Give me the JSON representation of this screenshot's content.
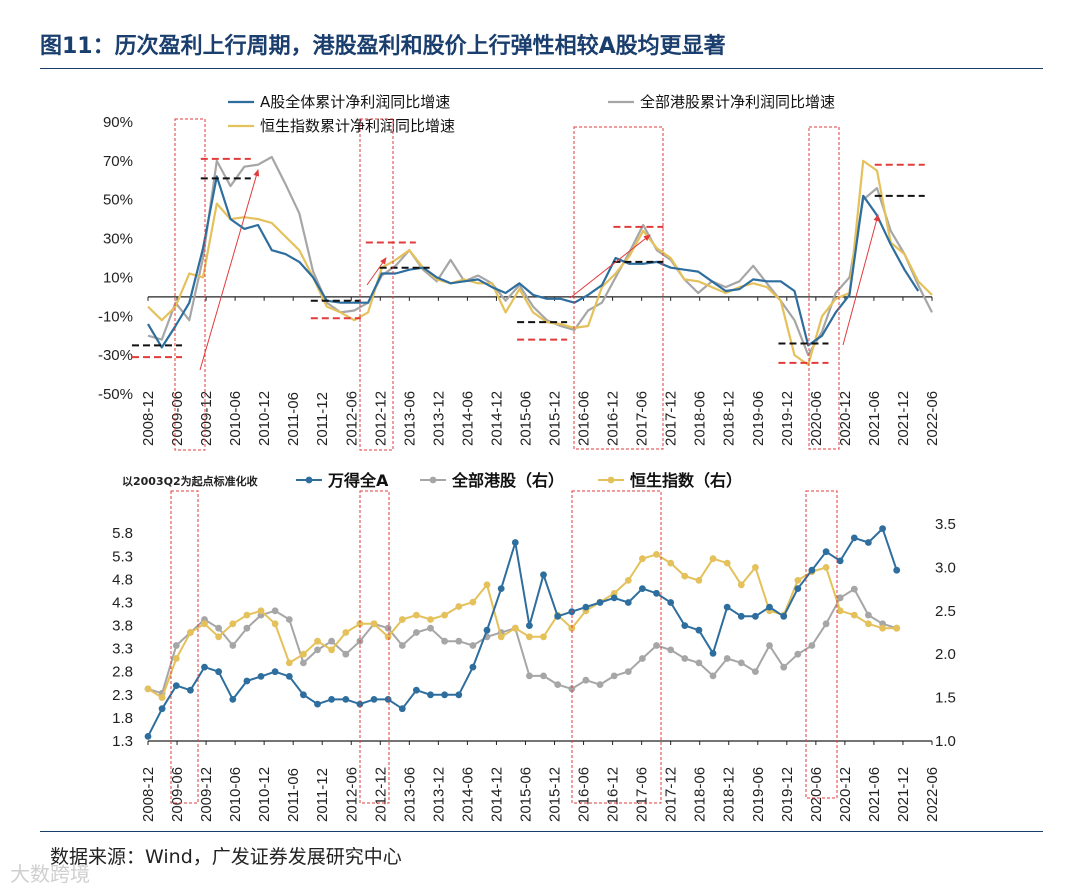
{
  "title": "图11：历次盈利上行周期，港股盈利和股价上行弹性相较A股均更显著",
  "source": "数据来源：Wind，广发证券发展研究中心",
  "watermark": "大数跨境",
  "colors": {
    "a_share": "#2e6e9e",
    "hk_all": "#a6a6a6",
    "hsi": "#e4c15a",
    "box": "#e23b3b",
    "marker_black": "#111111",
    "marker_red": "#e23b3b"
  },
  "chart_data": [
    {
      "type": "line",
      "title": "",
      "ylim": [
        -50,
        90
      ],
      "yticks": [
        90,
        70,
        50,
        30,
        10,
        -10,
        -30,
        -50
      ],
      "ytick_labels": [
        "90%",
        "70%",
        "50%",
        "30%",
        "10%",
        "-10%",
        "-30%",
        "-50%"
      ],
      "x_start": "2008-12",
      "x_tick_labels": [
        "2008-12",
        "2009-06",
        "2009-12",
        "2010-06",
        "2010-12",
        "2011-06",
        "2011-12",
        "2012-06",
        "2012-12",
        "2013-06",
        "2013-12",
        "2014-06",
        "2014-12",
        "2015-06",
        "2015-12",
        "2016-06",
        "2016-12",
        "2017-06",
        "2017-12",
        "2018-06",
        "2018-12",
        "2019-06",
        "2019-12",
        "2020-06",
        "2020-12",
        "2021-06",
        "2021-12",
        "2022-06"
      ],
      "series": [
        {
          "name": "A股全体累计净利润同比增速",
          "key": "a_share",
          "values": [
            -14,
            -26,
            -15,
            -3,
            25,
            62,
            40,
            35,
            37,
            24,
            22,
            18,
            10,
            -2,
            -3,
            -3,
            -3,
            12,
            12,
            14,
            15,
            10,
            7,
            8,
            9,
            5,
            2,
            7,
            1,
            -1,
            -1,
            -3,
            1,
            6,
            20,
            17,
            17,
            18,
            15,
            14,
            13,
            8,
            3,
            4,
            9,
            8,
            8,
            3,
            -25,
            -20,
            -8,
            1,
            52,
            42,
            27,
            14,
            3
          ]
        },
        {
          "name": "全部港股累计净利润同比增速",
          "key": "hk_all",
          "values": [
            -20,
            -22,
            -3,
            -12,
            20,
            70,
            57,
            67,
            68,
            72,
            58,
            43,
            13,
            -3,
            -8,
            -7,
            -3,
            11,
            16,
            24,
            14,
            8,
            19,
            8,
            11,
            7,
            -2,
            6,
            -5,
            -12,
            -15,
            -17,
            -7,
            -3,
            10,
            23,
            37,
            24,
            19,
            9,
            2,
            8,
            5,
            8,
            16,
            7,
            -2,
            -12,
            -30,
            -18,
            2,
            10,
            50,
            56,
            34,
            22,
            6,
            -8
          ]
        },
        {
          "name": "恒生指数累计净利润同比增速",
          "key": "hsi",
          "values": [
            -5,
            -12,
            -5,
            12,
            10,
            48,
            40,
            41,
            40,
            38,
            31,
            24,
            10,
            -5,
            -8,
            -12,
            -8,
            15,
            19,
            24,
            15,
            9,
            7,
            9,
            7,
            7,
            -8,
            4,
            -8,
            -13,
            -14,
            -16,
            -15,
            5,
            12,
            21,
            34,
            25,
            20,
            9,
            8,
            5,
            2,
            5,
            7,
            5,
            -2,
            -30,
            -35,
            -10,
            -1,
            2,
            70,
            65,
            28,
            22,
            8,
            1
          ]
        }
      ],
      "markers": {
        "black": [
          [
            0,
            -25
          ],
          [
            5,
            61
          ],
          [
            13,
            -2
          ],
          [
            18,
            15
          ],
          [
            28,
            -13
          ],
          [
            35,
            18
          ],
          [
            47,
            -24
          ],
          [
            54,
            52
          ]
        ],
        "red": [
          [
            0,
            -31
          ],
          [
            5,
            71
          ],
          [
            13,
            -11
          ],
          [
            17,
            28
          ],
          [
            28,
            -22
          ],
          [
            35,
            36
          ],
          [
            47,
            -34
          ],
          [
            54,
            68
          ]
        ]
      },
      "legend": [
        "A股全体累计净利润同比增速",
        "全部港股累计净利润同比增速",
        "恒生指数累计净利润同比增速"
      ]
    },
    {
      "type": "line",
      "title": "",
      "note": "以2003Q2为起点标准化收",
      "ylim_left": [
        1.3,
        6.0
      ],
      "yticks_left": [
        1.3,
        1.8,
        2.3,
        2.8,
        3.3,
        3.8,
        4.3,
        4.8,
        5.3,
        5.8
      ],
      "ytick_labels_left": [
        "1.3",
        "1.8",
        "2.3",
        "2.8",
        "3.3",
        "3.8",
        "4.3",
        "4.8",
        "5.3",
        "5.8"
      ],
      "ylim_right": [
        1.0,
        3.5
      ],
      "yticks_right": [
        1.0,
        1.5,
        2.0,
        2.5,
        3.0,
        3.5
      ],
      "ytick_labels_right": [
        "1.0",
        "1.5",
        "2.0",
        "2.5",
        "3.0",
        "3.5"
      ],
      "x_tick_labels": [
        "2008-12",
        "2009-06",
        "2009-12",
        "2010-06",
        "2010-12",
        "2011-06",
        "2011-12",
        "2012-06",
        "2012-12",
        "2013-06",
        "2013-12",
        "2014-06",
        "2014-12",
        "2015-06",
        "2015-12",
        "2016-06",
        "2016-12",
        "2017-06",
        "2017-12",
        "2018-06",
        "2018-12",
        "2019-06",
        "2019-12",
        "2020-06",
        "2020-12",
        "2021-06",
        "2021-12",
        "2022-06"
      ],
      "series": [
        {
          "name": "万得全A",
          "key": "a_share",
          "axis": "left",
          "values": [
            1.4,
            2.0,
            2.5,
            2.4,
            2.9,
            2.8,
            2.2,
            2.6,
            2.7,
            2.8,
            2.7,
            2.3,
            2.1,
            2.2,
            2.2,
            2.1,
            2.2,
            2.2,
            2.0,
            2.4,
            2.3,
            2.3,
            2.3,
            2.9,
            3.7,
            4.6,
            5.6,
            3.8,
            4.9,
            4.0,
            4.1,
            4.2,
            4.3,
            4.4,
            4.3,
            4.6,
            4.5,
            4.3,
            3.8,
            3.7,
            3.2,
            4.2,
            4.0,
            4.0,
            4.2,
            4.0,
            4.6,
            5.0,
            5.4,
            5.2,
            5.7,
            5.6,
            5.9,
            5.0
          ]
        },
        {
          "name": "全部港股（右）",
          "key": "hk_all",
          "axis": "right",
          "values": [
            1.6,
            1.55,
            2.1,
            2.25,
            2.4,
            2.3,
            2.1,
            2.3,
            2.45,
            2.5,
            2.4,
            1.9,
            2.05,
            2.15,
            2.0,
            2.15,
            2.35,
            2.3,
            2.1,
            2.25,
            2.3,
            2.15,
            2.15,
            2.1,
            2.2,
            2.25,
            2.3,
            1.75,
            1.75,
            1.65,
            1.6,
            1.7,
            1.65,
            1.75,
            1.8,
            1.95,
            2.1,
            2.05,
            1.95,
            1.9,
            1.75,
            1.95,
            1.9,
            1.8,
            2.1,
            1.85,
            2.0,
            2.1,
            2.35,
            2.65,
            2.75,
            2.45,
            2.35,
            2.3
          ]
        },
        {
          "name": "恒生指数（右）",
          "key": "hsi",
          "axis": "right",
          "values": [
            1.6,
            1.5,
            1.95,
            2.25,
            2.35,
            2.2,
            2.35,
            2.45,
            2.5,
            2.35,
            1.9,
            2.0,
            2.15,
            2.05,
            2.25,
            2.35,
            2.35,
            2.2,
            2.4,
            2.45,
            2.4,
            2.45,
            2.55,
            2.6,
            2.8,
            2.2,
            2.3,
            2.2,
            2.2,
            2.45,
            2.3,
            2.5,
            2.6,
            2.7,
            2.85,
            3.1,
            3.15,
            3.05,
            2.9,
            2.85,
            3.1,
            3.05,
            2.8,
            3.0,
            2.5,
            2.45,
            2.85,
            2.95,
            3.0,
            2.5,
            2.45,
            2.35,
            2.3,
            2.3
          ]
        }
      ],
      "legend": [
        "万得全A",
        "全部港股（右）",
        "恒生指数（右）"
      ]
    }
  ]
}
